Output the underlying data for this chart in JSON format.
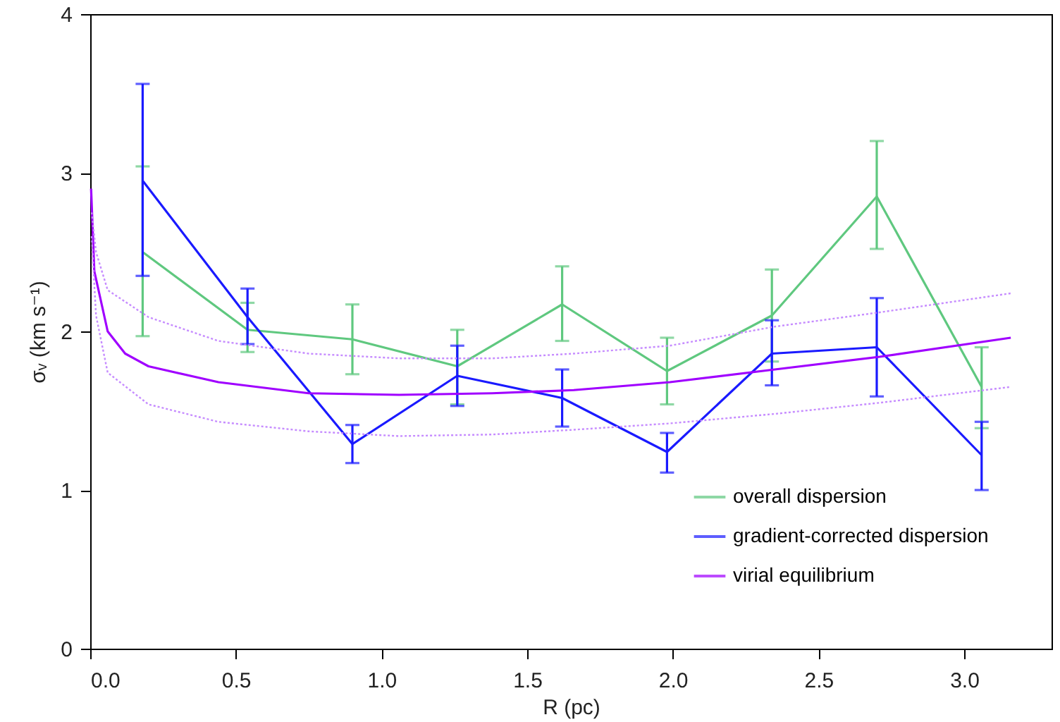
{
  "chart_data": {
    "type": "line",
    "xlabel": "R (pc)",
    "ylabel": "σᵥ (km s⁻¹)",
    "xlim": [
      0,
      3.3
    ],
    "xticks": [
      {
        "value": 0,
        "label": "0.0"
      },
      {
        "value": 0.5,
        "label": "0.5"
      },
      {
        "value": 1,
        "label": "1.0"
      },
      {
        "value": 1.5,
        "label": "1.5"
      },
      {
        "value": 2,
        "label": "2.0"
      },
      {
        "value": 2.5,
        "label": "2.5"
      },
      {
        "value": 3,
        "label": "3.0"
      }
    ],
    "ylim": [
      0,
      4
    ],
    "yticks": [
      0,
      1,
      2,
      3,
      4
    ],
    "grid": false,
    "legend": "bottom right",
    "marker": "none",
    "x": [
      0.18,
      0.54,
      0.9,
      1.26,
      1.62,
      1.98,
      2.34,
      2.7,
      3.06
    ],
    "series": [
      {
        "name": "overall dispersion",
        "color": "#5fc87f",
        "values": [
          2.5,
          2.01,
          1.95,
          1.78,
          2.17,
          1.75,
          2.1,
          2.85,
          1.65
        ],
        "errors": [
          [
            1.97,
            3.04
          ],
          [
            1.87,
            2.18
          ],
          [
            1.73,
            2.17
          ],
          [
            1.54,
            2.01
          ],
          [
            1.94,
            2.41
          ],
          [
            1.54,
            1.96
          ],
          [
            1.81,
            2.39
          ],
          [
            2.52,
            3.2
          ],
          [
            1.39,
            1.9
          ]
        ]
      },
      {
        "name": "gradient-corrected dispersion",
        "color": "#1a1aff",
        "values": [
          2.95,
          2.09,
          1.29,
          1.72,
          1.58,
          1.24,
          1.86,
          1.9,
          1.22
        ],
        "errors": [
          [
            2.35,
            3.56
          ],
          [
            1.92,
            2.27
          ],
          [
            1.17,
            1.41
          ],
          [
            1.53,
            1.91
          ],
          [
            1.4,
            1.76
          ],
          [
            1.11,
            1.36
          ],
          [
            1.66,
            2.07
          ],
          [
            1.59,
            2.21
          ],
          [
            1.0,
            1.43
          ]
        ]
      },
      {
        "name": "virial equilibrium",
        "color": "#a000ff",
        "x": [
          0.003,
          0.014,
          0.06,
          0.12,
          0.2,
          0.44,
          0.75,
          1.06,
          1.38,
          1.66,
          1.99,
          2.35,
          2.71,
          3.16
        ],
        "values": [
          2.9,
          2.38,
          2.0,
          1.86,
          1.78,
          1.68,
          1.61,
          1.6,
          1.61,
          1.63,
          1.68,
          1.76,
          1.84,
          1.96
        ]
      },
      {
        "color": "#c68cff",
        "line_style": "dotted",
        "x": [
          0.005,
          0.02,
          0.06,
          0.2,
          0.44,
          0.75,
          1.06,
          1.38,
          1.66,
          1.99,
          2.35,
          2.71,
          3.16
        ],
        "values": [
          2.75,
          2.5,
          2.26,
          2.09,
          1.94,
          1.86,
          1.83,
          1.83,
          1.86,
          1.91,
          2.03,
          2.12,
          2.24
        ]
      },
      {
        "color": "#c68cff",
        "line_style": "dotted",
        "x": [
          0.005,
          0.02,
          0.06,
          0.2,
          0.44,
          0.75,
          1.06,
          1.38,
          1.66,
          1.99,
          2.35,
          2.71,
          3.16
        ],
        "values": [
          2.6,
          2.1,
          1.74,
          1.54,
          1.43,
          1.37,
          1.34,
          1.35,
          1.38,
          1.42,
          1.48,
          1.55,
          1.65
        ]
      }
    ]
  }
}
